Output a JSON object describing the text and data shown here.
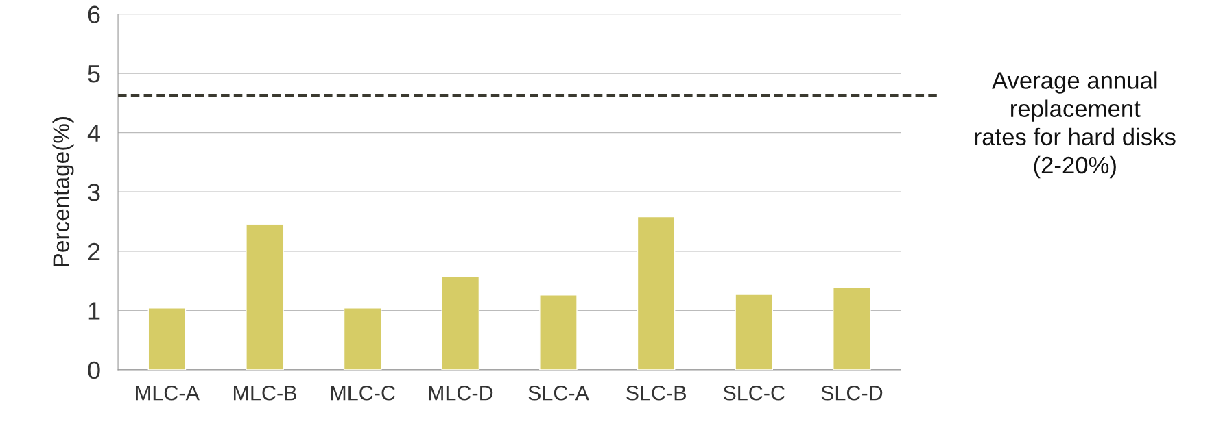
{
  "chart_data": {
    "type": "bar",
    "ylabel": "Percentage(%)",
    "categories": [
      "MLC-A",
      "MLC-B",
      "MLC-C",
      "MLC-D",
      "SLC-A",
      "SLC-B",
      "SLC-C",
      "SLC-D"
    ],
    "values": [
      1.04,
      2.45,
      1.04,
      1.57,
      1.26,
      2.58,
      1.28,
      1.39
    ],
    "color": "#d6cc66",
    "ylim": [
      0,
      6
    ],
    "yticks": [
      0,
      1,
      2,
      3,
      4,
      5,
      6
    ],
    "grid": "y",
    "ref_lines": [
      {
        "axis": "y",
        "value": 4.63,
        "label": "Average annual\nreplacement\nrates for hard disks\n(2-20%)",
        "color": "#3b3a30",
        "line_style": "dashed"
      }
    ]
  }
}
